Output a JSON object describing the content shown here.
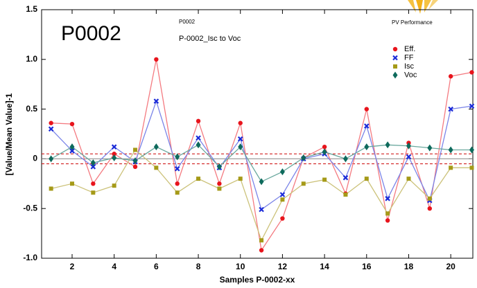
{
  "chart_data": {
    "type": "line",
    "heading": "P0002",
    "subheading": "P0002",
    "title": "P-0002_Isc to Voc",
    "corner_label": "PV Performance",
    "xlabel": "Samples P-0002-xx",
    "ylabel": "[Value/Mean Value]-1",
    "x": [
      1,
      2,
      3,
      4,
      5,
      6,
      7,
      8,
      9,
      10,
      11,
      12,
      13,
      14,
      15,
      16,
      17,
      18,
      19,
      20,
      21
    ],
    "xlim": [
      0.55,
      21.05
    ],
    "xticks": [
      2,
      4,
      6,
      8,
      10,
      12,
      14,
      16,
      18,
      20
    ],
    "ylim": [
      -1.0,
      1.5
    ],
    "yticks": [
      {
        "value": -1.0,
        "label": "-1.0"
      },
      -0.5,
      0,
      0.5,
      {
        "value": 1.0,
        "label": "1.0"
      },
      1.5
    ],
    "reference_lines": [
      0.05,
      -0.05
    ],
    "zero_line": 0,
    "legend": "upper right",
    "series": [
      {
        "name": "Eff.",
        "color": "#e8141c",
        "line_color": "#f47a80",
        "marker": "circle",
        "values": [
          0.36,
          0.35,
          -0.25,
          0.05,
          -0.08,
          1.0,
          -0.25,
          0.38,
          -0.25,
          0.36,
          -0.92,
          -0.6,
          0.01,
          0.12,
          -0.35,
          0.5,
          -0.62,
          0.16,
          -0.5,
          0.83,
          0.87
        ]
      },
      {
        "name": "FF",
        "color": "#1a2ad8",
        "line_color": "#7a84e8",
        "marker": "x",
        "values": [
          0.3,
          0.08,
          -0.08,
          0.12,
          -0.03,
          0.58,
          -0.1,
          0.21,
          -0.09,
          0.2,
          -0.51,
          -0.36,
          0.0,
          0.05,
          -0.19,
          0.33,
          -0.4,
          0.02,
          -0.42,
          0.5,
          0.53
        ]
      },
      {
        "name": "Isc",
        "color": "#a59a18",
        "line_color": "#ccc27a",
        "marker": "square",
        "values": [
          -0.3,
          -0.25,
          -0.34,
          -0.27,
          0.09,
          -0.09,
          -0.34,
          -0.2,
          -0.3,
          -0.2,
          -0.82,
          -0.41,
          -0.25,
          -0.21,
          -0.36,
          -0.2,
          -0.55,
          -0.2,
          -0.4,
          -0.09,
          -0.09
        ]
      },
      {
        "name": "Voc",
        "color": "#0e6a5c",
        "line_color": "#6aa89e",
        "marker": "diamond",
        "values": [
          0.0,
          0.12,
          -0.04,
          0.01,
          -0.02,
          0.12,
          0.02,
          0.14,
          -0.08,
          0.12,
          -0.23,
          -0.13,
          0.01,
          0.07,
          0.0,
          0.12,
          0.14,
          0.13,
          0.11,
          0.09,
          0.09
        ]
      }
    ]
  }
}
